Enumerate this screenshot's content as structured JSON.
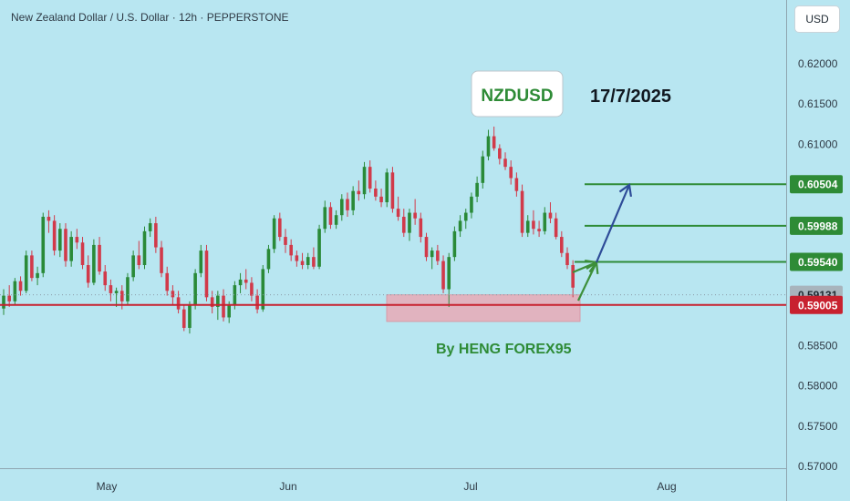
{
  "header": {
    "title": "New Zealand Dollar / U.S. Dollar · 12h · PEPPERSTONE"
  },
  "axis_controls": {
    "currency": "USD"
  },
  "colors": {
    "background": "#b8e6f1",
    "bull": "#2a8a38",
    "bear": "#d13a4a",
    "level_line": "#2e8b36",
    "support_line": "#c8212f",
    "support_zone": "#e8a9b6",
    "arrow_green": "#3d8f3a",
    "arrow_blue": "#2e4c98"
  },
  "chart_data": {
    "type": "candlestick",
    "title": "New Zealand Dollar / U.S. Dollar · 12h · PEPPERSTONE",
    "ylim": [
      0.57,
      0.625
    ],
    "y_ticks": [
      "0.62000",
      "0.61500",
      "0.61000",
      "0.60000",
      "0.59500",
      "0.58500",
      "0.58000",
      "0.57500",
      "0.57000"
    ],
    "x_labels": [
      "May",
      "Jun",
      "Jul",
      "Aug"
    ],
    "series": [
      {
        "ohlc": [
          [
            0.5896,
            0.592,
            0.5888,
            0.5912
          ],
          [
            0.5912,
            0.5925,
            0.5898,
            0.5905
          ],
          [
            0.5905,
            0.5934,
            0.59,
            0.593
          ],
          [
            0.593,
            0.5936,
            0.5912,
            0.5918
          ],
          [
            0.5918,
            0.5968,
            0.5915,
            0.5962
          ],
          [
            0.5962,
            0.5968,
            0.593,
            0.5934
          ],
          [
            0.5934,
            0.5948,
            0.5925,
            0.594
          ],
          [
            0.594,
            0.6015,
            0.5935,
            0.601
          ],
          [
            0.601,
            0.6018,
            0.599,
            0.6005
          ],
          [
            0.6005,
            0.6012,
            0.5962,
            0.5968
          ],
          [
            0.5968,
            0.6002,
            0.596,
            0.5995
          ],
          [
            0.5995,
            0.6002,
            0.5948,
            0.5955
          ],
          [
            0.5955,
            0.5992,
            0.5948,
            0.5985
          ],
          [
            0.5985,
            0.5995,
            0.597,
            0.5978
          ],
          [
            0.5978,
            0.5985,
            0.5945,
            0.595
          ],
          [
            0.595,
            0.5962,
            0.5922,
            0.5928
          ],
          [
            0.5928,
            0.5982,
            0.5925,
            0.5975
          ],
          [
            0.5975,
            0.5985,
            0.5938,
            0.5942
          ],
          [
            0.5942,
            0.595,
            0.5918,
            0.5925
          ],
          [
            0.5925,
            0.5932,
            0.5905,
            0.5915
          ],
          [
            0.5915,
            0.5922,
            0.5898,
            0.5918
          ],
          [
            0.5918,
            0.5925,
            0.5895,
            0.5905
          ],
          [
            0.5905,
            0.594,
            0.59,
            0.5935
          ],
          [
            0.5935,
            0.5968,
            0.593,
            0.5962
          ],
          [
            0.5962,
            0.598,
            0.5945,
            0.595
          ],
          [
            0.595,
            0.5998,
            0.5945,
            0.5992
          ],
          [
            0.5992,
            0.6008,
            0.5985,
            0.6002
          ],
          [
            0.6002,
            0.601,
            0.5965,
            0.5972
          ],
          [
            0.5972,
            0.598,
            0.5935,
            0.594
          ],
          [
            0.594,
            0.5948,
            0.5912,
            0.5918
          ],
          [
            0.5918,
            0.5925,
            0.59,
            0.591
          ],
          [
            0.591,
            0.5918,
            0.589,
            0.5895
          ],
          [
            0.5895,
            0.59,
            0.5868,
            0.5872
          ],
          [
            0.5872,
            0.5905,
            0.5865,
            0.59
          ],
          [
            0.59,
            0.5945,
            0.5895,
            0.594
          ],
          [
            0.594,
            0.5975,
            0.5935,
            0.5968
          ],
          [
            0.5968,
            0.5975,
            0.5905,
            0.591
          ],
          [
            0.591,
            0.5918,
            0.589,
            0.5898
          ],
          [
            0.5898,
            0.5918,
            0.5882,
            0.5912
          ],
          [
            0.5912,
            0.592,
            0.588,
            0.5885
          ],
          [
            0.5885,
            0.5905,
            0.5878,
            0.59
          ],
          [
            0.59,
            0.593,
            0.5895,
            0.5925
          ],
          [
            0.5925,
            0.594,
            0.5915,
            0.5932
          ],
          [
            0.5932,
            0.5945,
            0.592,
            0.5928
          ],
          [
            0.5928,
            0.5935,
            0.5905,
            0.5912
          ],
          [
            0.5912,
            0.592,
            0.589,
            0.5895
          ],
          [
            0.5895,
            0.595,
            0.5892,
            0.5945
          ],
          [
            0.5945,
            0.5975,
            0.594,
            0.597
          ],
          [
            0.597,
            0.6012,
            0.5965,
            0.6008
          ],
          [
            0.6008,
            0.6015,
            0.598,
            0.5985
          ],
          [
            0.5985,
            0.5995,
            0.5965,
            0.5975
          ],
          [
            0.5975,
            0.5982,
            0.5955,
            0.5962
          ],
          [
            0.5962,
            0.5968,
            0.5948,
            0.5955
          ],
          [
            0.5955,
            0.5965,
            0.5945,
            0.595
          ],
          [
            0.595,
            0.5965,
            0.5945,
            0.596
          ],
          [
            0.596,
            0.5972,
            0.5945,
            0.5948
          ],
          [
            0.5948,
            0.6,
            0.5945,
            0.5995
          ],
          [
            0.5995,
            0.603,
            0.599,
            0.6022
          ],
          [
            0.6022,
            0.6028,
            0.5995,
            0.6
          ],
          [
            0.6,
            0.6018,
            0.5995,
            0.6012
          ],
          [
            0.6012,
            0.6038,
            0.6005,
            0.6032
          ],
          [
            0.6032,
            0.604,
            0.601,
            0.6018
          ],
          [
            0.6018,
            0.6048,
            0.6012,
            0.6042
          ],
          [
            0.6042,
            0.6055,
            0.603,
            0.6038
          ],
          [
            0.6038,
            0.6078,
            0.6032,
            0.6072
          ],
          [
            0.6072,
            0.608,
            0.604,
            0.6045
          ],
          [
            0.6045,
            0.6055,
            0.603,
            0.6035
          ],
          [
            0.6035,
            0.6045,
            0.6022,
            0.6028
          ],
          [
            0.6028,
            0.607,
            0.6022,
            0.6065
          ],
          [
            0.6065,
            0.6072,
            0.6015,
            0.602
          ],
          [
            0.602,
            0.6035,
            0.6005,
            0.601
          ],
          [
            0.601,
            0.602,
            0.5985,
            0.599
          ],
          [
            0.599,
            0.602,
            0.598,
            0.6015
          ],
          [
            0.6015,
            0.6032,
            0.6,
            0.6008
          ],
          [
            0.6008,
            0.6015,
            0.5978,
            0.5985
          ],
          [
            0.5985,
            0.599,
            0.5955,
            0.596
          ],
          [
            0.596,
            0.5972,
            0.5945,
            0.5968
          ],
          [
            0.5968,
            0.5975,
            0.595,
            0.5955
          ],
          [
            0.5955,
            0.5962,
            0.5915,
            0.592
          ],
          [
            0.592,
            0.5965,
            0.5898,
            0.596
          ],
          [
            0.596,
            0.5998,
            0.5955,
            0.5992
          ],
          [
            0.5992,
            0.6012,
            0.5985,
            0.6005
          ],
          [
            0.6005,
            0.602,
            0.5995,
            0.6015
          ],
          [
            0.6015,
            0.604,
            0.6008,
            0.6035
          ],
          [
            0.6035,
            0.606,
            0.6028,
            0.6052
          ],
          [
            0.6052,
            0.6092,
            0.6045,
            0.6085
          ],
          [
            0.6085,
            0.6118,
            0.608,
            0.611
          ],
          [
            0.611,
            0.6122,
            0.6092,
            0.6095
          ],
          [
            0.6095,
            0.61,
            0.6075,
            0.6082
          ],
          [
            0.6082,
            0.609,
            0.6068,
            0.6072
          ],
          [
            0.6072,
            0.608,
            0.605,
            0.6058
          ],
          [
            0.6058,
            0.6065,
            0.6035,
            0.6042
          ],
          [
            0.6042,
            0.605,
            0.5985,
            0.599
          ],
          [
            0.599,
            0.6012,
            0.5985,
            0.6005
          ],
          [
            0.6005,
            0.6018,
            0.5988,
            0.5995
          ],
          [
            0.5995,
            0.6005,
            0.5985,
            0.5992
          ],
          [
            0.5992,
            0.6022,
            0.5988,
            0.6015
          ],
          [
            0.6015,
            0.6028,
            0.6002,
            0.6008
          ],
          [
            0.6008,
            0.6015,
            0.5982,
            0.5985
          ],
          [
            0.5985,
            0.5992,
            0.596,
            0.5965
          ],
          [
            0.5965,
            0.5972,
            0.5945,
            0.595
          ],
          [
            0.595,
            0.5956,
            0.591,
            0.5922
          ]
        ]
      }
    ],
    "price_levels": [
      "0.60504",
      "0.59988",
      "0.59540"
    ],
    "support_price": "0.59005",
    "current_price": "0.59131",
    "annotations": {
      "symbol_box": "NZDUSD",
      "date": "17/7/2025",
      "author": "By HENG FOREX95"
    }
  }
}
